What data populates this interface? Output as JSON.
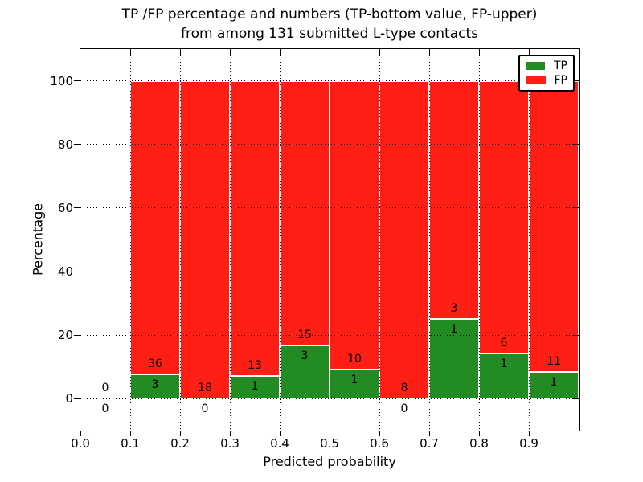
{
  "title": {
    "line1": "TP /FP percentage and numbers (TP-bottom value, FP-upper)",
    "line2": "from among 131 submitted L-type contacts"
  },
  "chart_data": {
    "type": "bar",
    "stacked": true,
    "normalized": "each bin stacked to 100%",
    "title": "TP /FP percentage and numbers (TP-bottom value, FP-upper) from among 131 submitted L-type contacts",
    "xlabel": "Predicted probability",
    "ylabel": "Percentage",
    "xlim": [
      0.0,
      1.0
    ],
    "ylim": [
      -10,
      110
    ],
    "xticks": [
      "0.0",
      "0.1",
      "0.2",
      "0.3",
      "0.4",
      "0.5",
      "0.6",
      "0.7",
      "0.8",
      "0.9"
    ],
    "yticks": [
      0,
      20,
      40,
      60,
      80,
      100
    ],
    "grid": "dotted, drawn over bars",
    "total_contacts": 131,
    "series": [
      {
        "name": "TP",
        "color": "#228b22"
      },
      {
        "name": "FP",
        "color": "#ff1f14"
      }
    ],
    "legend": {
      "position": "upper right",
      "entries": [
        "TP",
        "FP"
      ]
    },
    "bins": [
      {
        "range": "0.0-0.1",
        "tp": 0,
        "fp": 0,
        "tp_percent": 0
      },
      {
        "range": "0.1-0.2",
        "tp": 3,
        "fp": 36,
        "tp_percent": 7.69
      },
      {
        "range": "0.2-0.3",
        "tp": 0,
        "fp": 18,
        "tp_percent": 0
      },
      {
        "range": "0.3-0.4",
        "tp": 1,
        "fp": 13,
        "tp_percent": 7.14
      },
      {
        "range": "0.4-0.5",
        "tp": 3,
        "fp": 15,
        "tp_percent": 16.67
      },
      {
        "range": "0.5-0.6",
        "tp": 1,
        "fp": 10,
        "tp_percent": 9.09
      },
      {
        "range": "0.6-0.7",
        "tp": 0,
        "fp": 8,
        "tp_percent": 0
      },
      {
        "range": "0.7-0.8",
        "tp": 1,
        "fp": 3,
        "tp_percent": 25.0
      },
      {
        "range": "0.8-0.9",
        "tp": 1,
        "fp": 6,
        "tp_percent": 14.29
      },
      {
        "range": "0.9-1.0",
        "tp": 1,
        "fp": 11,
        "tp_percent": 8.33
      }
    ]
  },
  "colors": {
    "tp_green": "#228b22",
    "fp_red": "#ff1f14",
    "grid": "#000000",
    "background": "#ffffff"
  }
}
